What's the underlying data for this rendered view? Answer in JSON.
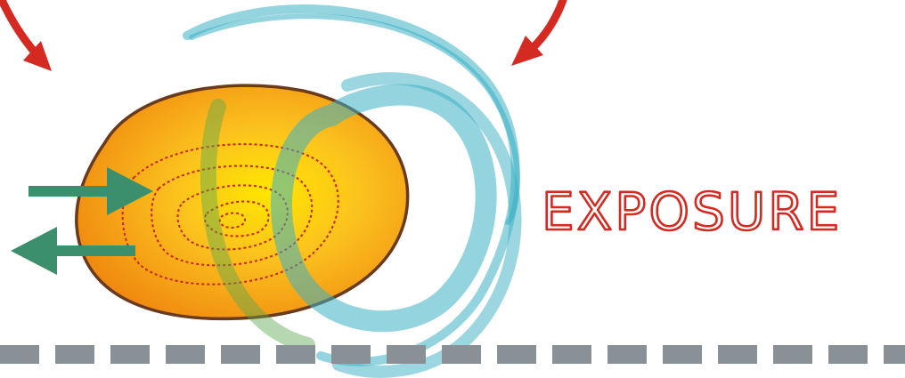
{
  "diagram": {
    "label": "EXPOSURE"
  },
  "colors": {
    "label_stroke": "#d42a22",
    "red_arrow": "#d42a22",
    "blob_inner": "#ffe600",
    "blob_mid": "#f9b81b",
    "blob_outer": "#f08a10",
    "blob_outline": "#6a3a1c",
    "contour": "#c6231a",
    "swirl": "#3ab0c4",
    "green_arrow": "#3b8f6c",
    "dash": "#8a9196"
  },
  "icons": {
    "arrow_in": "arrow-right-icon",
    "arrow_out": "arrow-left-icon",
    "red_arrow_left": "curved-arrow-down-right-icon",
    "red_arrow_right": "curved-arrow-down-left-icon"
  }
}
